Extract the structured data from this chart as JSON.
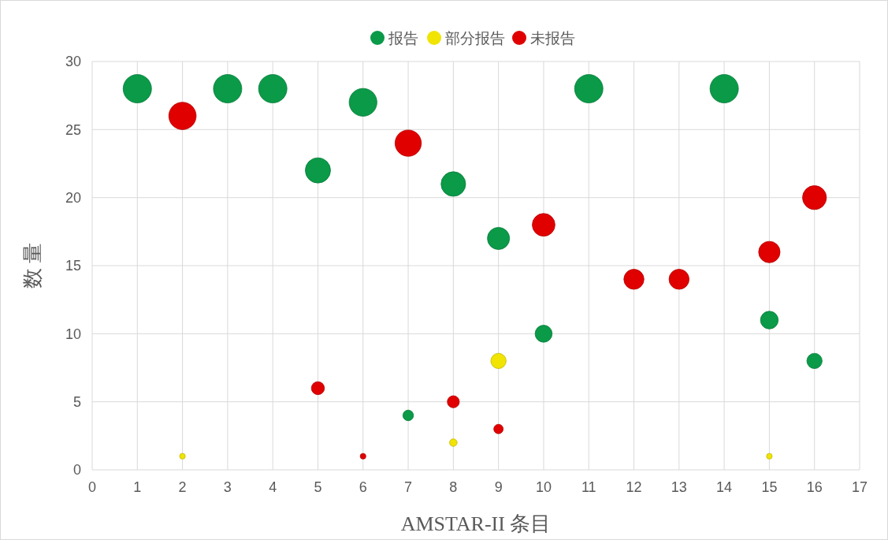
{
  "chart_data": {
    "type": "bubble",
    "xlabel": "AMSTAR-II 条目",
    "ylabel": "数 量",
    "xlim": [
      0,
      17
    ],
    "xticks": [
      0,
      1,
      2,
      3,
      4,
      5,
      6,
      7,
      8,
      9,
      10,
      11,
      12,
      13,
      14,
      15,
      16,
      17
    ],
    "ylim": [
      0,
      30
    ],
    "yticks": [
      0,
      5,
      10,
      15,
      20,
      25,
      30
    ],
    "grid": true,
    "legend": "top",
    "series": [
      {
        "name": "报告",
        "color": "#0a9a48",
        "x": [
          1,
          3,
          4,
          5,
          6,
          7,
          8,
          9,
          10,
          11,
          14,
          15,
          16
        ],
        "values": [
          28,
          28,
          28,
          22,
          27,
          4,
          21,
          17,
          10,
          28,
          28,
          11,
          8
        ],
        "sizes": [
          1,
          1,
          1,
          0.79,
          0.96,
          0.14,
          0.75,
          0.61,
          0.36,
          1,
          1,
          0.39,
          0.29
        ]
      },
      {
        "name": "部分报告",
        "color": "#f0e400",
        "x": [
          2,
          8,
          9,
          15
        ],
        "values": [
          1,
          2,
          8,
          1
        ],
        "sizes": [
          0.04,
          0.07,
          0.29,
          0.04
        ]
      },
      {
        "name": "未报告",
        "color": "#e00000",
        "x": [
          2,
          5,
          6,
          7,
          8,
          9,
          10,
          12,
          13,
          15,
          16
        ],
        "values": [
          26,
          6,
          1,
          24,
          5,
          3,
          18,
          14,
          14,
          16,
          20
        ],
        "sizes": [
          0.93,
          0.21,
          0.04,
          0.86,
          0.18,
          0.11,
          0.64,
          0.5,
          0.5,
          0.57,
          0.71
        ]
      }
    ]
  }
}
